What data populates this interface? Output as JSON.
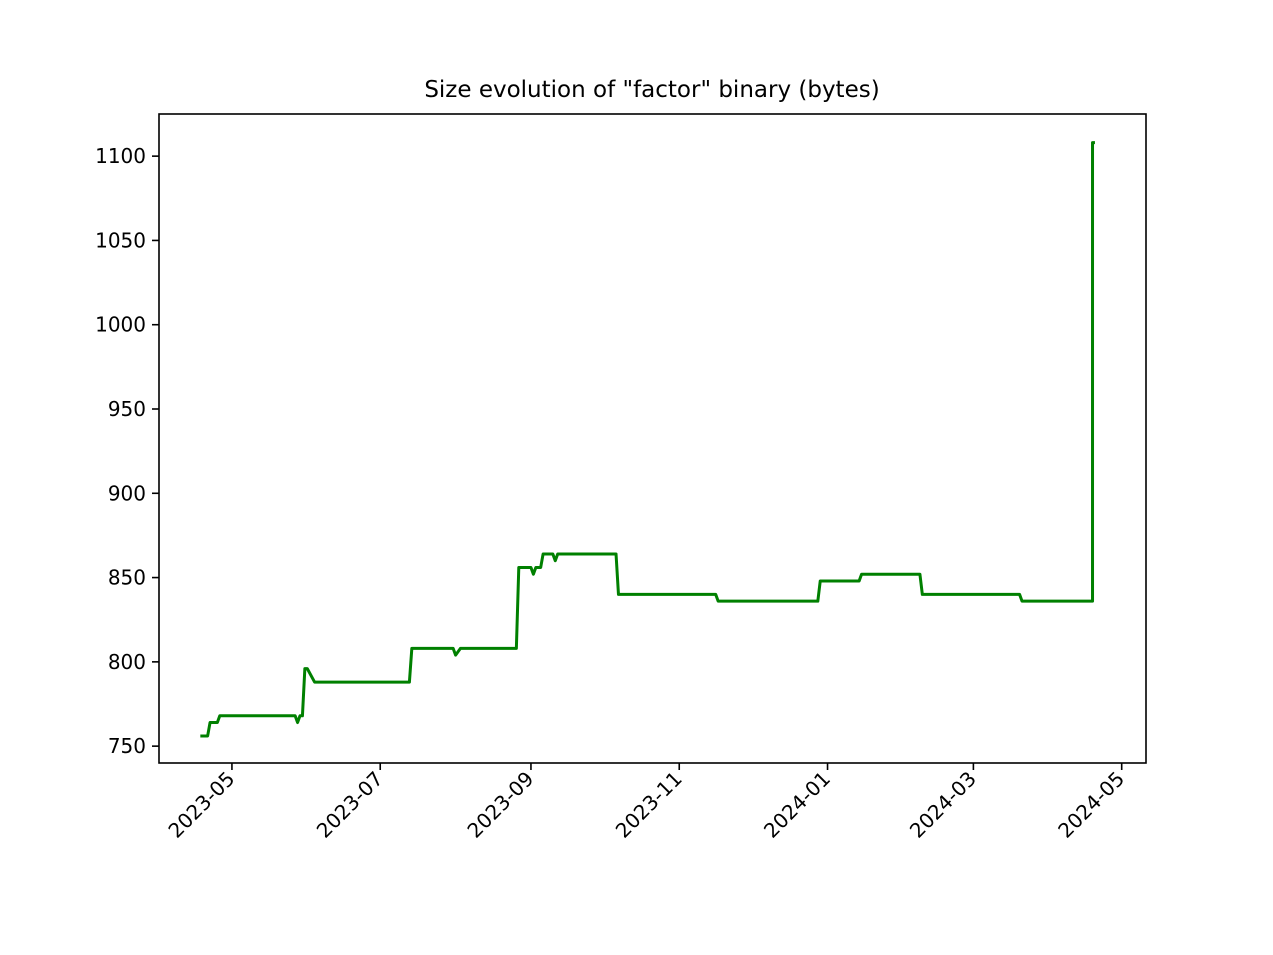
{
  "chart_data": {
    "type": "line",
    "title": "Size evolution of \"factor\" binary (bytes)",
    "xlabel": "",
    "ylabel": "",
    "x_tick_labels": [
      "2023-05",
      "2023-07",
      "2023-09",
      "2023-11",
      "2024-01",
      "2024-03",
      "2024-05"
    ],
    "y_ticks": [
      750,
      800,
      850,
      900,
      950,
      1000,
      1050,
      1100
    ],
    "xlim": [
      "2023-04-01",
      "2024-05-11"
    ],
    "ylim": [
      740,
      1125
    ],
    "grid": false,
    "legend": "none",
    "line_color": "#008000",
    "series": [
      {
        "x": [
          "2023-04-18",
          "2023-04-21",
          "2023-04-22",
          "2023-04-25",
          "2023-04-26",
          "2023-05-27",
          "2023-05-28",
          "2023-05-29",
          "2023-05-30",
          "2023-05-31",
          "2023-06-01",
          "2023-06-04",
          "2023-07-13",
          "2023-07-14",
          "2023-07-31",
          "2023-08-01",
          "2023-08-03",
          "2023-08-26",
          "2023-08-27",
          "2023-09-01",
          "2023-09-02",
          "2023-09-03",
          "2023-09-05",
          "2023-09-06",
          "2023-09-10",
          "2023-09-11",
          "2023-09-12",
          "2023-10-06",
          "2023-10-07",
          "2023-11-16",
          "2023-11-17",
          "2023-12-28",
          "2023-12-29",
          "2024-01-14",
          "2024-01-15",
          "2024-02-08",
          "2024-02-09",
          "2024-03-20",
          "2024-03-21",
          "2024-04-19",
          "2024-04-19",
          "2024-04-20"
        ],
        "y": [
          756,
          756,
          764,
          764,
          768,
          768,
          764,
          768,
          768,
          796,
          796,
          788,
          788,
          808,
          808,
          804,
          808,
          808,
          856,
          856,
          852,
          856,
          856,
          864,
          864,
          860,
          864,
          864,
          840,
          840,
          836,
          836,
          848,
          848,
          852,
          852,
          840,
          840,
          836,
          836,
          1108,
          1108
        ]
      }
    ]
  }
}
